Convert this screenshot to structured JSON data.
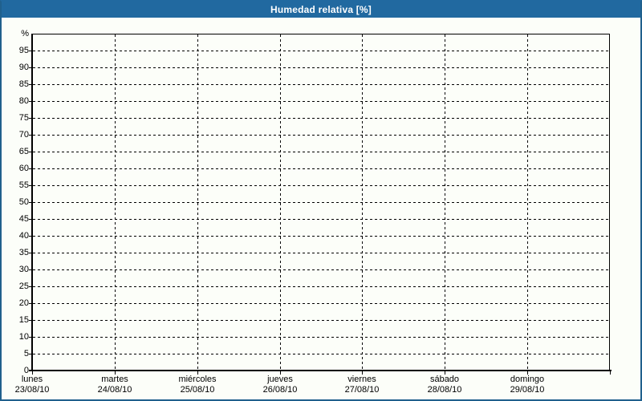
{
  "window": {
    "title": "Humedad relativa [%]"
  },
  "colors": {
    "title_bar": "#2169A0",
    "window_border": "#20608D",
    "background": "#FCFEF9",
    "grid_line": "#000000",
    "axis_line": "#000000",
    "label_text": "#000000",
    "title_text": "#FFFFFF"
  },
  "chart_data": {
    "type": "line",
    "title": "Humedad relativa [%]",
    "y_unit": "%",
    "ylim": [
      0,
      100
    ],
    "y_tick_step": 5,
    "y_ticks": [
      0,
      5,
      10,
      15,
      20,
      25,
      30,
      35,
      40,
      45,
      50,
      55,
      60,
      65,
      70,
      75,
      80,
      85,
      90,
      95
    ],
    "x_days": [
      {
        "name": "lunes",
        "date": "23/08/10"
      },
      {
        "name": "martes",
        "date": "24/08/10"
      },
      {
        "name": "miércoles",
        "date": "25/08/10"
      },
      {
        "name": "jueves",
        "date": "26/08/10"
      },
      {
        "name": "viernes",
        "date": "27/08/10"
      },
      {
        "name": "sábado",
        "date": "28/08/10"
      },
      {
        "name": "domingo",
        "date": "29/08/10"
      }
    ],
    "grid": "dashed",
    "legend": "none",
    "series": []
  }
}
